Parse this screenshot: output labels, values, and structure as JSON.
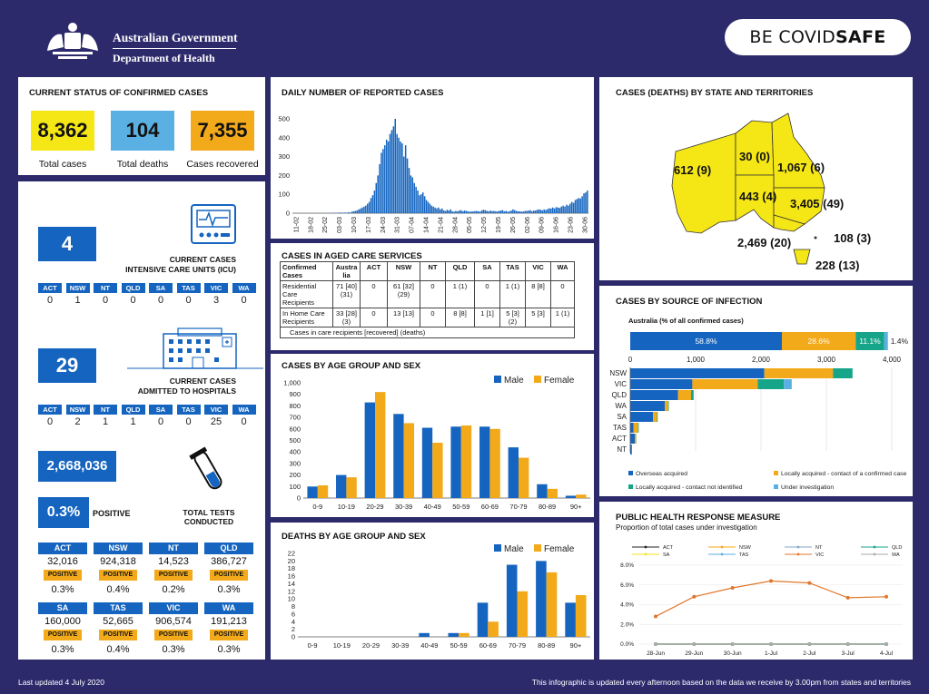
{
  "header": {
    "gov_line1": "Australian Government",
    "gov_line2": "Department of Health",
    "covidsafe_be": "BE COVID",
    "covidsafe_safe": "SAFE"
  },
  "current_status": {
    "title": "CURRENT STATUS OF CONFIRMED CASES",
    "total_cases": "8,362",
    "total_cases_label": "Total cases",
    "total_deaths": "104",
    "total_deaths_label": "Total deaths",
    "recovered": "7,355",
    "recovered_label": "Cases recovered",
    "colors": {
      "cases": "#f5e616",
      "deaths": "#5ab0e3",
      "recovered": "#f2a91a"
    }
  },
  "icu": {
    "value": "4",
    "label1": "CURRENT CASES",
    "label2": "INTENSIVE CARE UNITS (ICU)",
    "states": [
      "ACT",
      "NSW",
      "NT",
      "QLD",
      "SA",
      "TAS",
      "VIC",
      "WA"
    ],
    "values": [
      "0",
      "1",
      "0",
      "0",
      "0",
      "0",
      "3",
      "0"
    ]
  },
  "hospital": {
    "value": "29",
    "label1": "CURRENT CASES",
    "label2": "ADMITTED TO HOSPITALS",
    "states": [
      "ACT",
      "NSW",
      "NT",
      "QLD",
      "SA",
      "TAS",
      "VIC",
      "WA"
    ],
    "values": [
      "0",
      "2",
      "1",
      "1",
      "0",
      "0",
      "25",
      "0"
    ]
  },
  "tests": {
    "total": "2,668,036",
    "positive_pct": "0.3%",
    "positive_label": "POSITIVE",
    "label1": "TOTAL TESTS",
    "label2": "CONDUCTED",
    "badge": "POSITIVE",
    "rows": [
      [
        {
          "state": "ACT",
          "tests": "32,016",
          "pct": "0.3%"
        },
        {
          "state": "NSW",
          "tests": "924,318",
          "pct": "0.4%"
        },
        {
          "state": "NT",
          "tests": "14,523",
          "pct": "0.2%"
        },
        {
          "state": "QLD",
          "tests": "386,727",
          "pct": "0.3%"
        }
      ],
      [
        {
          "state": "SA",
          "tests": "160,000",
          "pct": "0.3%"
        },
        {
          "state": "TAS",
          "tests": "52,665",
          "pct": "0.4%"
        },
        {
          "state": "VIC",
          "tests": "906,574",
          "pct": "0.3%"
        },
        {
          "state": "WA",
          "tests": "191,213",
          "pct": "0.3%"
        }
      ]
    ]
  },
  "aged_care": {
    "title": "CASES IN AGED CARE SERVICES",
    "headers": [
      "Confirmed Cases",
      "Austra lia",
      "ACT",
      "NSW",
      "NT",
      "QLD",
      "SA",
      "TAS",
      "VIC",
      "WA"
    ],
    "rows": [
      [
        "Residential Care Recipients",
        "71 [40] (31)",
        "0",
        "61 [32] (29)",
        "0",
        "1 (1)",
        "0",
        "1 (1)",
        "8 [8]",
        "0"
      ],
      [
        "In Home Care Recipients",
        "33 [28] (3)",
        "0",
        "13 [13]",
        "0",
        "8 [8]",
        "1 [1]",
        "5 [3] (2)",
        "5 [3]",
        "1 (1)"
      ]
    ],
    "footnote": "Cases in care recipients [recovered] (deaths)"
  },
  "map": {
    "title": "CASES (DEATHS) BY STATE AND TERRITORIES",
    "labels": {
      "WA": "612 (9)",
      "NT": "30 (0)",
      "QLD": "1,067 (6)",
      "SA": "443 (4)",
      "NSW": "3,405 (49)",
      "ACT": "108 (3)",
      "VIC": "2,469 (20)",
      "TAS": "228 (13)"
    },
    "fill": "#f5e616"
  },
  "footer": {
    "left": "Last updated 4 July 2020",
    "right": "This infographic is updated every afternoon based on the data we receive by 3.00pm from states and territories"
  },
  "chart_data": [
    {
      "id": "daily",
      "type": "bar",
      "title": "DAILY NUMBER OF REPORTED CASES",
      "xlabels": [
        "11-02",
        "18-02",
        "25-02",
        "03-03",
        "10-03",
        "17-03",
        "24-03",
        "31-03",
        "07-04",
        "14-04",
        "21-04",
        "28-04",
        "05-05",
        "12-05",
        "19-05",
        "26-05",
        "02-06",
        "09-06",
        "16-06",
        "23-06",
        "30-06"
      ],
      "values": [
        0,
        0,
        0,
        0,
        0,
        0,
        0,
        0,
        0,
        0,
        1,
        0,
        0,
        0,
        0,
        0,
        0,
        0,
        0,
        0,
        1,
        0,
        0,
        1,
        2,
        1,
        2,
        3,
        3,
        2,
        3,
        2,
        5,
        3,
        8,
        10,
        12,
        15,
        20,
        25,
        30,
        35,
        40,
        50,
        60,
        80,
        95,
        120,
        160,
        200,
        260,
        320,
        340,
        360,
        390,
        380,
        420,
        440,
        460,
        500,
        420,
        400,
        380,
        370,
        300,
        360,
        290,
        240,
        200,
        190,
        160,
        140,
        120,
        95,
        100,
        110,
        90,
        70,
        60,
        50,
        40,
        35,
        30,
        25,
        30,
        20,
        25,
        15,
        12,
        18,
        14,
        20,
        10,
        8,
        12,
        10,
        14,
        16,
        10,
        14,
        12,
        10,
        8,
        9,
        10,
        11,
        12,
        10,
        8,
        15,
        18,
        16,
        12,
        10,
        14,
        11,
        12,
        10,
        9,
        12,
        14,
        16,
        10,
        12,
        8,
        10,
        14,
        20,
        16,
        12,
        10,
        10,
        8,
        9,
        12,
        12,
        14,
        16,
        10,
        14,
        14,
        18,
        20,
        18,
        15,
        20,
        17,
        22,
        26,
        25,
        30,
        25,
        32,
        30,
        28,
        35,
        40,
        35,
        45,
        40,
        50,
        60,
        55,
        70,
        75,
        80,
        78,
        90,
        105,
        110,
        120
      ],
      "ylim": [
        0,
        500
      ],
      "yticks": [
        0,
        100,
        200,
        300,
        400,
        500
      ],
      "color": "#1565c0"
    },
    {
      "id": "age_cases",
      "type": "bar",
      "title": "CASES BY AGE GROUP AND SEX",
      "categories": [
        "0-9",
        "10-19",
        "20-29",
        "30-39",
        "40-49",
        "50-59",
        "60-69",
        "70-79",
        "80-89",
        "90+"
      ],
      "series": [
        {
          "name": "Male",
          "values": [
            100,
            200,
            830,
            730,
            610,
            620,
            620,
            440,
            120,
            20
          ],
          "color": "#1565c0"
        },
        {
          "name": "Female",
          "values": [
            110,
            180,
            920,
            650,
            480,
            630,
            600,
            350,
            80,
            30
          ],
          "color": "#f2a91a"
        }
      ],
      "ylim": [
        0,
        1000
      ],
      "yticks": [
        0,
        100,
        200,
        300,
        400,
        500,
        600,
        700,
        800,
        900,
        1000
      ],
      "legend": "top-right"
    },
    {
      "id": "age_deaths",
      "type": "bar",
      "title": "DEATHS BY AGE GROUP AND SEX",
      "categories": [
        "0-9",
        "10-19",
        "20-29",
        "30-39",
        "40-49",
        "50-59",
        "60-69",
        "70-79",
        "80-89",
        "90+"
      ],
      "series": [
        {
          "name": "Male",
          "values": [
            0,
            0,
            0,
            0,
            1,
            1,
            9,
            19,
            20,
            9
          ],
          "color": "#1565c0"
        },
        {
          "name": "Female",
          "values": [
            0,
            0,
            0,
            0,
            0,
            1,
            4,
            12,
            17,
            11
          ],
          "color": "#f2a91a"
        }
      ],
      "ylim": [
        0,
        22
      ],
      "yticks": [
        0,
        2,
        4,
        6,
        8,
        10,
        12,
        14,
        16,
        18,
        20,
        22
      ],
      "legend": "top-right"
    },
    {
      "id": "source",
      "type": "bar",
      "title": "CASES BY SOURCE OF INFECTION",
      "subtitle": "Australia (% of all confirmed cases)",
      "aus_pcts": [
        58.8,
        28.6,
        11.1,
        1.4
      ],
      "aus_labels": [
        "58.8%",
        "28.6%",
        "11.1%",
        "1.4%"
      ],
      "xlim": [
        0,
        4000
      ],
      "xticks": [
        0,
        1000,
        2000,
        3000,
        4000
      ],
      "xtick_labels": [
        "0",
        "1,000",
        "2,000",
        "3,000",
        "4,000"
      ],
      "states": [
        "NSW",
        "VIC",
        "QLD",
        "WA",
        "SA",
        "TAS",
        "ACT",
        "NT"
      ],
      "series": [
        {
          "name": "Overseas acquired",
          "values": [
            2050,
            950,
            730,
            530,
            350,
            50,
            70,
            25
          ],
          "color": "#1565c0"
        },
        {
          "name": "Locally acquired - contact of a confirmed case",
          "values": [
            1050,
            1000,
            200,
            50,
            60,
            70,
            20,
            2
          ],
          "color": "#f2a91a"
        },
        {
          "name": "Locally acquired - contact not identified",
          "values": [
            300,
            400,
            40,
            10,
            10,
            10,
            3,
            0
          ],
          "color": "#17a589"
        },
        {
          "name": "Under investigation",
          "values": [
            0,
            120,
            0,
            0,
            0,
            0,
            0,
            0
          ],
          "color": "#5ab0e3"
        }
      ]
    },
    {
      "id": "phrm",
      "type": "line",
      "title": "PUBLIC HEALTH RESPONSE MEASURE",
      "subtitle": "Proportion of total cases under investigation",
      "x": [
        "28-Jun",
        "29-Jun",
        "30-Jun",
        "1-Jul",
        "2-Jul",
        "3-Jul",
        "4-Jul"
      ],
      "ylim": [
        0,
        8
      ],
      "yticks": [
        "0.0%",
        "2.0%",
        "4.0%",
        "6.0%",
        "8.0%"
      ],
      "series": [
        {
          "name": "ACT",
          "values": [
            0,
            0,
            0,
            0,
            0,
            0,
            0
          ],
          "color": "#222222"
        },
        {
          "name": "NSW",
          "values": [
            0,
            0,
            0,
            0,
            0,
            0,
            0
          ],
          "color": "#f2a91a"
        },
        {
          "name": "NT",
          "values": [
            0,
            0,
            0,
            0,
            0,
            0,
            0
          ],
          "color": "#7fa7c9"
        },
        {
          "name": "QLD",
          "values": [
            0,
            0,
            0,
            0,
            0,
            0,
            0
          ],
          "color": "#17a589"
        },
        {
          "name": "SA",
          "values": [
            0,
            0,
            0,
            0,
            0,
            0,
            0
          ],
          "color": "#f5e616"
        },
        {
          "name": "TAS",
          "values": [
            0,
            0,
            0,
            0,
            0,
            0,
            0
          ],
          "color": "#5ab0e3"
        },
        {
          "name": "VIC",
          "values": [
            2.8,
            4.8,
            5.7,
            6.4,
            6.2,
            4.7,
            4.8
          ],
          "color": "#e0762b"
        },
        {
          "name": "WA",
          "values": [
            0,
            0,
            0,
            0,
            0,
            0,
            0
          ],
          "color": "#aaaaaa"
        }
      ]
    }
  ]
}
